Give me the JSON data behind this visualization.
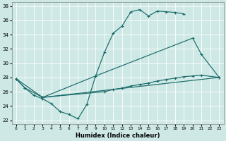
{
  "xlabel": "Humidex (Indice chaleur)",
  "ylabel": "",
  "bg_color": "#cde8e5",
  "line_color": "#1a6b6a",
  "xlim": [
    -0.5,
    23.5
  ],
  "ylim": [
    21.5,
    38.5
  ],
  "yticks": [
    22,
    24,
    26,
    28,
    30,
    32,
    34,
    36,
    38
  ],
  "xticks": [
    0,
    1,
    2,
    3,
    4,
    5,
    6,
    7,
    8,
    9,
    10,
    11,
    12,
    13,
    14,
    15,
    16,
    17,
    18,
    19,
    20,
    21,
    22,
    23
  ],
  "curve1": {
    "x": [
      0,
      1,
      2,
      3,
      4,
      5,
      6,
      7,
      8,
      9,
      10,
      11,
      12,
      13,
      14,
      15,
      16,
      17,
      18,
      19
    ],
    "y": [
      27.8,
      26.5,
      25.5,
      25.0,
      24.3,
      23.2,
      22.8,
      22.2,
      24.2,
      28.2,
      31.5,
      34.2,
      35.2,
      37.2,
      37.5,
      36.6,
      37.3,
      37.2,
      37.1,
      36.9
    ]
  },
  "curve2": {
    "x": [
      0,
      1,
      3,
      9,
      20,
      21,
      23
    ],
    "y": [
      27.8,
      26.5,
      25.2,
      28.2,
      33.5,
      31.2,
      28.0
    ]
  },
  "curve3": {
    "x": [
      0,
      3,
      10,
      11,
      12,
      13,
      14,
      15,
      16,
      17,
      18,
      19,
      20,
      21,
      23
    ],
    "y": [
      27.8,
      25.2,
      26.0,
      26.3,
      26.5,
      26.8,
      27.0,
      27.2,
      27.5,
      27.7,
      27.9,
      28.1,
      28.2,
      28.3,
      28.0
    ]
  },
  "curve4": {
    "x": [
      3,
      23
    ],
    "y": [
      25.2,
      28.0
    ]
  }
}
